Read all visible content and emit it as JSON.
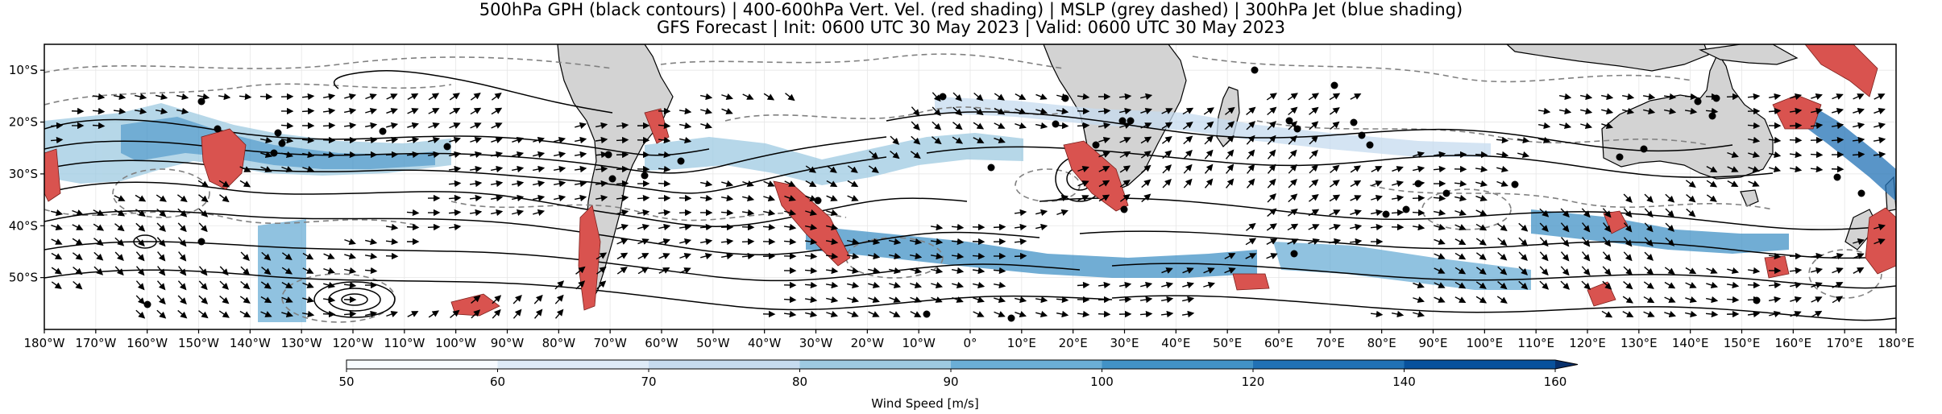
{
  "title": {
    "line1": "500hPa GPH (black contours) | 400-600hPa Vert. Vel. (red shading) | MSLP (grey dashed) | 300hPa Jet (blue shading)",
    "line2": "GFS Forecast | Init: 0600 UTC 30 May 2023 | Valid: 0600 UTC 30 May 2023"
  },
  "map": {
    "projection": "PlateCarree",
    "lon_range": [
      -180,
      180
    ],
    "lat_range": [
      -60,
      -5
    ],
    "lon_ticks": [
      "180°W",
      "170°W",
      "160°W",
      "150°W",
      "140°W",
      "130°W",
      "120°W",
      "110°W",
      "100°W",
      "90°W",
      "80°W",
      "70°W",
      "60°W",
      "50°W",
      "40°W",
      "30°W",
      "20°W",
      "10°W",
      "0°",
      "10°E",
      "20°E",
      "30°E",
      "40°E",
      "50°E",
      "60°E",
      "70°E",
      "80°E",
      "90°E",
      "100°E",
      "110°E",
      "120°E",
      "130°E",
      "140°E",
      "150°E",
      "160°E",
      "170°E",
      "180°E"
    ],
    "lat_ticks": [
      "10°S",
      "20°S",
      "30°S",
      "40°S",
      "50°S"
    ],
    "lat_tick_values": [
      -10,
      -20,
      -30,
      -40,
      -50
    ],
    "land_color": "#d3d3d3",
    "gph_color": "#000000",
    "mslp_color": "#808080",
    "vv_color": "#d9534f",
    "grid": true
  },
  "colorbar": {
    "label": "Wind Speed [m/s]",
    "ticks": [
      "50",
      "60",
      "70",
      "80",
      "90",
      "100",
      "120",
      "140",
      "160"
    ],
    "tick_values": [
      50,
      60,
      70,
      80,
      90,
      100,
      120,
      140,
      160
    ],
    "colors": [
      "#f7fbff",
      "#deebf7",
      "#c6dbef",
      "#9ecae1",
      "#6baed6",
      "#4292c6",
      "#2171b5",
      "#08519c",
      "#08306b"
    ],
    "extend": "max"
  }
}
